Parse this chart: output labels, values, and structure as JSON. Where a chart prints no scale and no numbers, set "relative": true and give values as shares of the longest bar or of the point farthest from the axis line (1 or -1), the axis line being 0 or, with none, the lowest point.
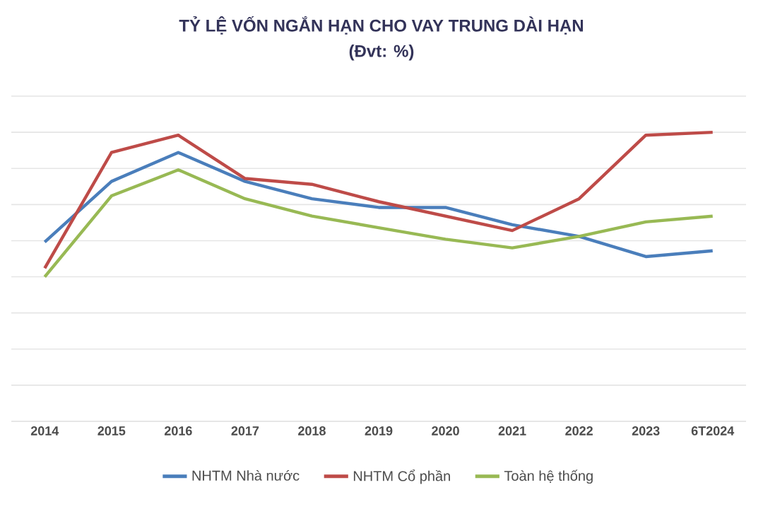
{
  "chart_data": {
    "type": "line",
    "title": "TỶ LỆ VỐN NGẮN HẠN CHO VAY TRUNG DÀI HẠN",
    "subtitle": "(Đvt: %)",
    "relative": true,
    "categories": [
      "2014",
      "2015",
      "2016",
      "2017",
      "2018",
      "2019",
      "2020",
      "2021",
      "2022",
      "2023",
      "6T2024"
    ],
    "series": [
      {
        "name": "NHTM Nhà nước",
        "color": "#4a7ebb",
        "values": [
          0.62,
          0.83,
          0.93,
          0.83,
          0.77,
          0.74,
          0.74,
          0.68,
          0.64,
          0.57,
          0.59
        ]
      },
      {
        "name": "NHTM Cổ phần",
        "color": "#be4b48",
        "values": [
          0.53,
          0.93,
          0.99,
          0.84,
          0.82,
          0.76,
          0.71,
          0.66,
          0.77,
          0.99,
          1
        ]
      },
      {
        "name": "Toàn hệ thống",
        "color": "#98b954",
        "values": [
          0.5,
          0.78,
          0.87,
          0.77,
          0.71,
          0.67,
          0.63,
          0.6,
          0.64,
          0.69,
          0.71
        ]
      }
    ],
    "grid": true,
    "legend": "bottom",
    "tick_labels": "x",
    "marker": "none",
    "line_style": "solid"
  }
}
